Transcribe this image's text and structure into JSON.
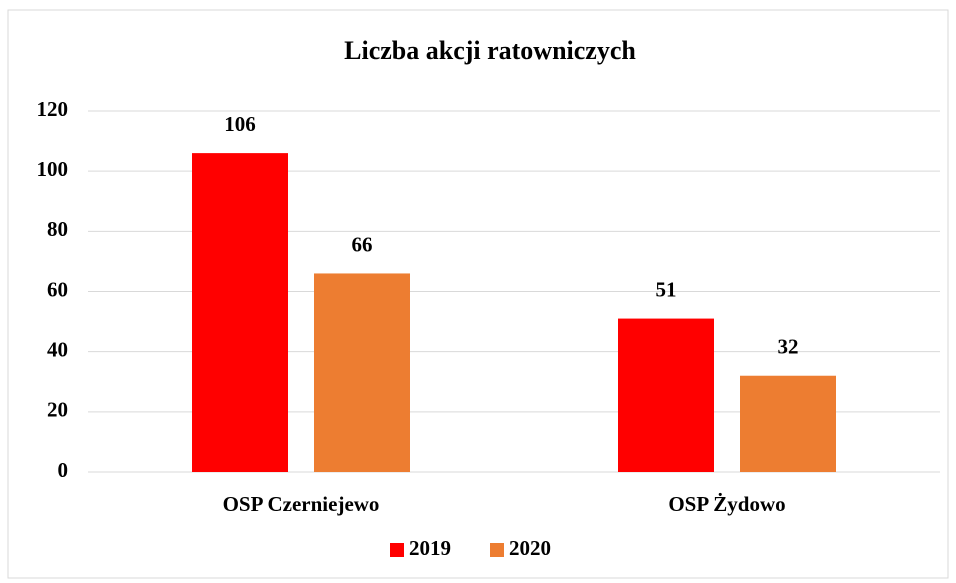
{
  "chart_data": {
    "type": "bar",
    "title": "Liczba akcji ratowniczych",
    "categories": [
      "OSP Czerniejewo",
      "OSP Żydowo"
    ],
    "series": [
      {
        "name": "2019",
        "color": "#ff0000",
        "values": [
          106,
          51
        ]
      },
      {
        "name": "2020",
        "color": "#ed7d31",
        "values": [
          66,
          32
        ]
      }
    ],
    "ylim": [
      0,
      120
    ],
    "yticks": [
      0,
      20,
      40,
      60,
      80,
      100,
      120
    ],
    "grid": true,
    "legend": "bottom"
  }
}
